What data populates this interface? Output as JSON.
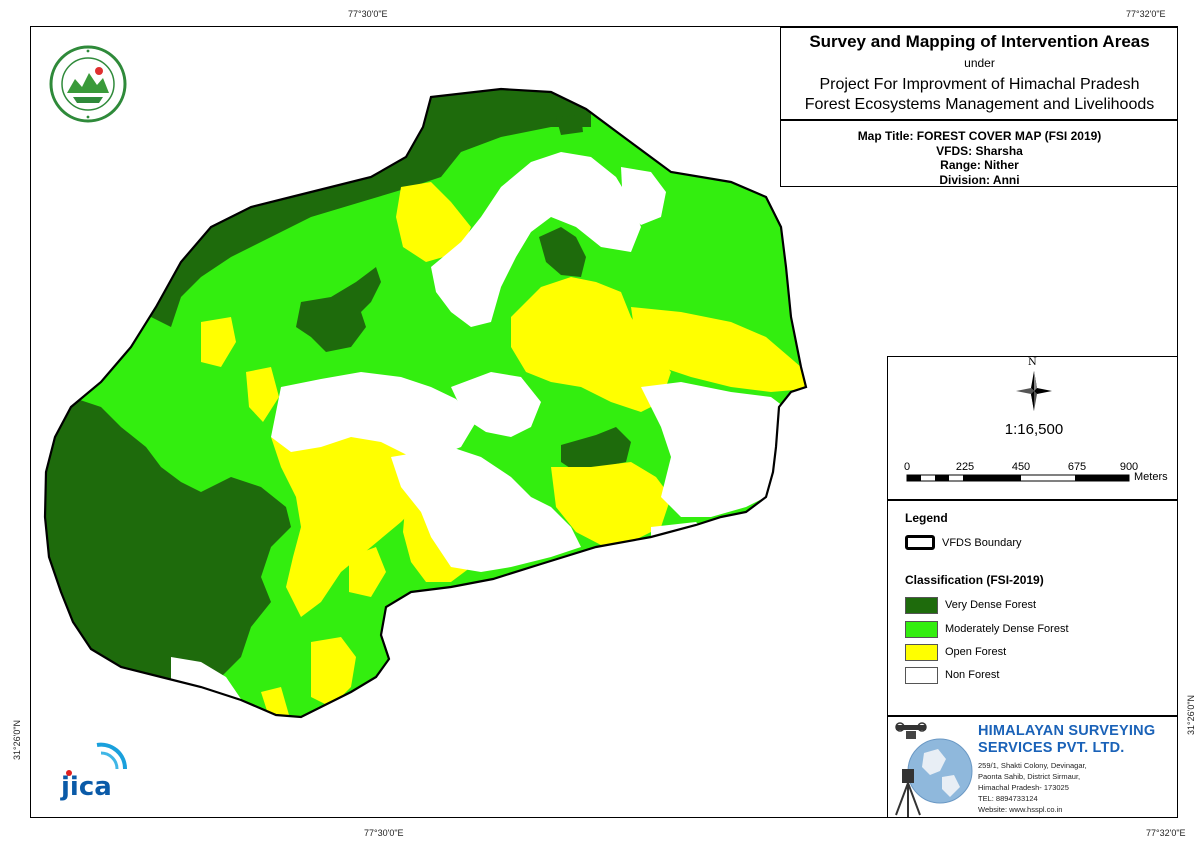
{
  "coordinates": {
    "top_left": "77°30'0\"E",
    "top_right": "77°32'0\"E",
    "bottom_left": "77°30'0\"E",
    "bottom_right": "77°32'0\"E",
    "left": "31°26'0\"N",
    "right": "31°26'0\"N"
  },
  "title_box": {
    "main": "Survey and Mapping of Intervention Areas",
    "under": "under",
    "project_line1": "Project For Improvment of Himachal Pradesh",
    "project_line2": "Forest Ecosystems Management and Livelihoods"
  },
  "map_info": {
    "map_title": "Map Title: FOREST COVER MAP (FSI 2019)",
    "vfds": "VFDS: Sharsha",
    "range": "Range: Nither",
    "division": "Division: Anni"
  },
  "scale": {
    "north_label": "N",
    "ratio": "1:16,500",
    "ticks": [
      "0",
      "225",
      "450",
      "675",
      "900"
    ],
    "units": "Meters"
  },
  "legend": {
    "title": "Legend",
    "boundary_label": "VFDS Boundary",
    "classification_title": "Classification (FSI-2019)",
    "items": [
      {
        "label": "Very Dense Forest",
        "color": "#1e6b0c"
      },
      {
        "label": "Moderately Dense Forest",
        "color": "#33ee0f"
      },
      {
        "label": "Open Forest",
        "color": "#ffff00"
      },
      {
        "label": "Non Forest",
        "color": "#ffffff"
      }
    ]
  },
  "company": {
    "name_line1": "HIMALAYAN SURVEYING",
    "name_line2": "SERVICES PVT. LTD.",
    "address": [
      "259/1, Shakti Colony, Devinagar,",
      "Paonta Sahib, District Sirmaur,",
      "Himachal Pradesh- 173025",
      "TEL: 8894733124",
      "Website: www.hsspl.co.in"
    ],
    "brand_color": "#1a62b8"
  },
  "jica": {
    "text": "jica",
    "color": "#0a5aa8"
  }
}
